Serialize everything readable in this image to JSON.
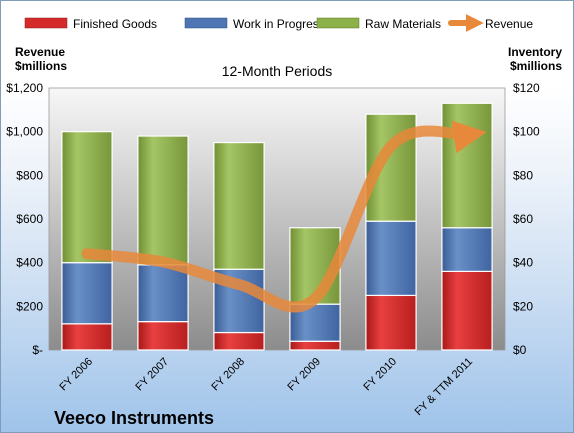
{
  "chart_data": {
    "type": "bar+line",
    "title": "12-Month Periods",
    "company": "Veeco Instruments",
    "ylabel_left": [
      "Revenue",
      "$millions"
    ],
    "ylabel_right": [
      "Inventory",
      "$millions"
    ],
    "categories": [
      "FY 2006",
      "FY 2007",
      "FY 2008",
      "FY 2009",
      "FY 2010",
      "FY & TTM 2011"
    ],
    "left_axis": {
      "range": [
        0,
        1200
      ],
      "ticks": [
        "$-",
        "$200",
        "$400",
        "$600",
        "$800",
        "$1,000",
        "$1,200"
      ],
      "tick_values": [
        0,
        200,
        400,
        600,
        800,
        1000,
        1200
      ]
    },
    "right_axis": {
      "range": [
        0,
        120
      ],
      "ticks": [
        "$0",
        "$20",
        "$40",
        "$60",
        "$80",
        "$100",
        "$120"
      ],
      "tick_values": [
        0,
        20,
        40,
        60,
        80,
        100,
        120
      ]
    },
    "stack_axis": "right",
    "series": [
      {
        "name": "Finished Goods",
        "color": "#d42a2a",
        "values": [
          12,
          13,
          8,
          4,
          25,
          36
        ]
      },
      {
        "name": "Work in Progress",
        "color": "#4f76b3",
        "values": [
          28,
          26,
          29,
          17,
          34,
          20
        ]
      },
      {
        "name": "Raw Materials",
        "color": "#8cb04a",
        "values": [
          60,
          59,
          58,
          35,
          49,
          57
        ]
      }
    ],
    "line_series": {
      "name": "Revenue",
      "color": "#e8883a",
      "axis": "left",
      "values": [
        441,
        403,
        300,
        235,
        933,
        985
      ]
    },
    "legend_position": "top",
    "grid": false
  }
}
